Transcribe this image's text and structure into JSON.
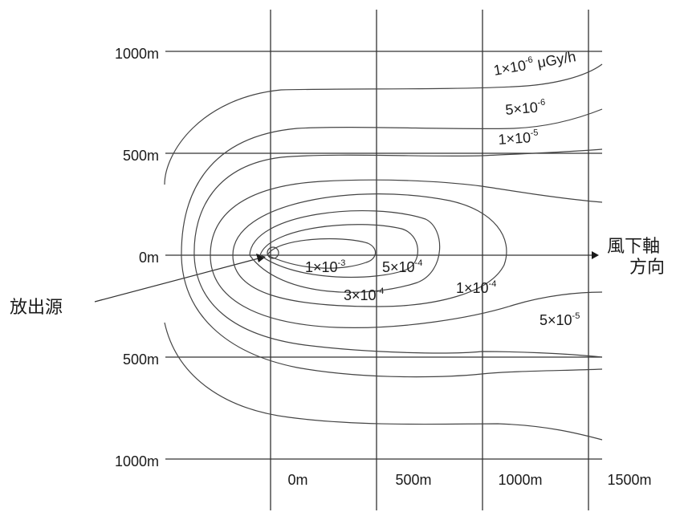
{
  "diagram": {
    "y_tick_labels": [
      "1000m",
      "500m",
      "0m",
      "500m",
      "1000m"
    ],
    "x_tick_labels": [
      "0m",
      "500m",
      "1000m",
      "1500m"
    ],
    "source_label": "放出源",
    "wind_axis_label_line1": "風下軸",
    "wind_axis_label_line2": "方向",
    "contour_labels": [
      {
        "mant": "1×10",
        "exp": "-6",
        "unit": " μGy/h"
      },
      {
        "mant": "5×10",
        "exp": "-6",
        "unit": ""
      },
      {
        "mant": "1×10",
        "exp": "-5",
        "unit": ""
      },
      {
        "mant": "1×10",
        "exp": "-3",
        "unit": ""
      },
      {
        "mant": "5×10",
        "exp": "-4",
        "unit": ""
      },
      {
        "mant": "3×10",
        "exp": "-4",
        "unit": ""
      },
      {
        "mant": "1×10",
        "exp": "-4",
        "unit": ""
      },
      {
        "mant": "5×10",
        "exp": "-5",
        "unit": ""
      }
    ]
  }
}
